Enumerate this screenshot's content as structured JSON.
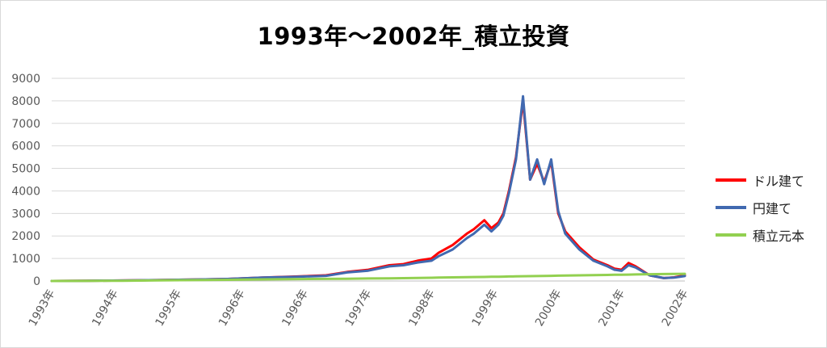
{
  "chart_data": {
    "type": "line",
    "title": "1993年～2002年_積立投資",
    "ylim": [
      0,
      9000
    ],
    "y_ticks": [
      "0",
      "1000",
      "2000",
      "3000",
      "4000",
      "5000",
      "6000",
      "7000",
      "8000",
      "9000"
    ],
    "x_ticks": [
      "1993年",
      "1994年",
      "1995年",
      "1996年",
      "1996年",
      "1997年",
      "1998年",
      "1999年",
      "2000年",
      "2001年",
      "2002年"
    ],
    "grid": true,
    "legend_position": "right",
    "x": [
      1993.0,
      1993.5,
      1994.0,
      1994.5,
      1995.0,
      1995.5,
      1996.0,
      1996.5,
      1996.9,
      1997.2,
      1997.5,
      1997.8,
      1998.0,
      1998.2,
      1998.4,
      1998.5,
      1998.7,
      1998.9,
      1999.0,
      1999.15,
      1999.25,
      1999.35,
      1999.42,
      1999.5,
      1999.6,
      1999.7,
      1999.8,
      1999.9,
      2000.0,
      2000.1,
      2000.2,
      2000.3,
      2000.5,
      2000.7,
      2000.9,
      2001.0,
      2001.1,
      2001.2,
      2001.3,
      2001.5,
      2001.7,
      2001.85,
      2002.0
    ],
    "series": [
      {
        "name": "ドル建て",
        "color": "#ff0000",
        "values": [
          0,
          10,
          20,
          40,
          60,
          90,
          150,
          200,
          250,
          400,
          500,
          700,
          750,
          900,
          1000,
          1250,
          1600,
          2100,
          2300,
          2700,
          2350,
          2600,
          3000,
          4000,
          5500,
          8000,
          4500,
          5200,
          4400,
          5300,
          3000,
          2200,
          1500,
          950,
          700,
          550,
          500,
          800,
          650,
          250,
          130,
          160,
          250
        ]
      },
      {
        "name": "円建て",
        "color": "#4169b0",
        "values": [
          0,
          10,
          20,
          40,
          60,
          90,
          150,
          190,
          230,
          380,
          460,
          650,
          700,
          820,
          900,
          1100,
          1400,
          1900,
          2100,
          2500,
          2200,
          2500,
          2900,
          3900,
          5400,
          8200,
          4500,
          5400,
          4300,
          5400,
          3100,
          2100,
          1400,
          900,
          650,
          500,
          450,
          700,
          600,
          250,
          130,
          150,
          220
        ]
      },
      {
        "name": "積立元本",
        "color": "#92d050",
        "values": [
          0,
          4,
          12,
          25,
          40,
          55,
          70,
          85,
          95,
          100,
          110,
          120,
          125,
          135,
          145,
          150,
          160,
          170,
          175,
          180,
          185,
          190,
          195,
          200,
          205,
          210,
          215,
          220,
          225,
          230,
          235,
          240,
          250,
          260,
          270,
          275,
          280,
          285,
          290,
          300,
          310,
          315,
          320
        ]
      }
    ]
  }
}
